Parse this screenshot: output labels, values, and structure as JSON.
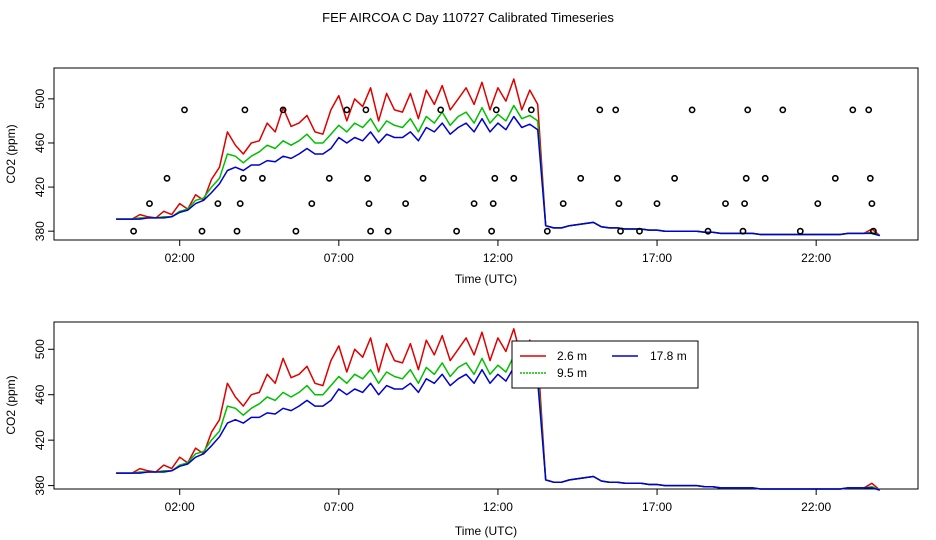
{
  "title": "FEF AIRCOA C  Day 110727  Calibrated Timeseries",
  "colors": {
    "h2_6": "#e00000",
    "h9_5": "#00c000",
    "h17_8": "#0000d0",
    "axis": "#000000"
  },
  "chart_data": [
    {
      "type": "line",
      "panel": "top",
      "title": "FEF AIRCOA C  Day 110727  Calibrated Timeseries",
      "xlabel": "Time (UTC)",
      "ylabel": "CO2 (ppm)",
      "xlim": [
        -1.95,
        25.2
      ],
      "ylim": [
        372,
        528
      ],
      "xticks": [
        2,
        7,
        12,
        17,
        22
      ],
      "xtick_labels": [
        "02:00",
        "07:00",
        "12:00",
        "17:00",
        "22:00"
      ],
      "yticks": [
        380,
        420,
        460,
        500
      ],
      "ytick_labels": [
        "380",
        "420",
        "460",
        "500"
      ],
      "x": [
        0,
        0.25,
        0.5,
        0.75,
        1,
        1.25,
        1.5,
        1.75,
        2,
        2.25,
        2.5,
        2.75,
        3,
        3.25,
        3.5,
        3.75,
        4,
        4.25,
        4.5,
        4.75,
        5,
        5.25,
        5.5,
        5.75,
        6,
        6.25,
        6.5,
        6.75,
        7,
        7.25,
        7.5,
        7.75,
        8,
        8.25,
        8.5,
        8.75,
        9,
        9.25,
        9.5,
        9.75,
        10,
        10.25,
        10.5,
        10.75,
        11,
        11.25,
        11.5,
        11.75,
        12,
        12.25,
        12.5,
        12.75,
        13,
        13.25,
        13.5,
        13.75,
        14,
        14.25,
        14.5,
        14.75,
        15,
        15.25,
        15.5,
        15.75,
        16,
        16.25,
        16.5,
        16.75,
        17,
        17.25,
        17.5,
        17.75,
        18,
        18.25,
        18.5,
        18.75,
        19,
        19.25,
        19.5,
        19.75,
        20,
        20.25,
        20.5,
        20.75,
        21,
        21.25,
        21.5,
        21.75,
        22,
        22.25,
        22.5,
        22.75,
        23,
        23.25,
        23.5,
        23.75,
        24
      ],
      "series": [
        {
          "name": "2.6 m",
          "values": [
            391,
            391,
            391,
            395,
            393,
            392,
            398,
            395,
            405,
            400,
            413,
            408,
            427,
            438,
            470,
            458,
            450,
            460,
            462,
            478,
            470,
            492,
            475,
            478,
            485,
            470,
            468,
            490,
            503,
            480,
            500,
            493,
            510,
            480,
            505,
            490,
            488,
            505,
            482,
            508,
            495,
            512,
            490,
            500,
            510,
            495,
            515,
            490,
            510,
            498,
            518,
            490,
            508,
            495,
            385,
            383,
            383,
            385,
            386,
            387,
            388,
            384,
            383,
            383,
            382,
            382,
            382,
            381,
            381,
            380,
            380,
            380,
            380,
            380,
            379,
            379,
            378,
            378,
            378,
            378,
            378,
            377,
            377,
            377,
            377,
            377,
            377,
            377,
            377,
            377,
            377,
            377,
            378,
            378,
            378,
            382,
            376
          ]
        },
        {
          "name": "9.5 m",
          "values": [
            391,
            391,
            391,
            392,
            392,
            392,
            393,
            393,
            398,
            400,
            408,
            410,
            420,
            428,
            450,
            448,
            442,
            448,
            452,
            458,
            455,
            462,
            458,
            462,
            468,
            460,
            460,
            468,
            476,
            470,
            478,
            474,
            482,
            470,
            480,
            476,
            474,
            482,
            470,
            484,
            478,
            488,
            476,
            484,
            488,
            478,
            492,
            478,
            486,
            480,
            494,
            482,
            485,
            480,
            385,
            383,
            383,
            385,
            386,
            387,
            388,
            384,
            383,
            383,
            382,
            382,
            382,
            381,
            381,
            380,
            380,
            380,
            380,
            380,
            379,
            379,
            378,
            378,
            378,
            378,
            378,
            377,
            377,
            377,
            377,
            377,
            377,
            377,
            377,
            377,
            377,
            377,
            378,
            378,
            378,
            379,
            376
          ]
        },
        {
          "name": "17.8 m",
          "values": [
            391,
            391,
            391,
            391,
            392,
            392,
            392,
            393,
            397,
            399,
            405,
            408,
            415,
            423,
            435,
            438,
            435,
            440,
            440,
            444,
            443,
            448,
            446,
            450,
            455,
            450,
            450,
            455,
            465,
            460,
            465,
            462,
            470,
            460,
            468,
            465,
            465,
            470,
            462,
            474,
            470,
            478,
            468,
            474,
            478,
            470,
            482,
            470,
            478,
            472,
            484,
            474,
            477,
            472,
            385,
            383,
            383,
            385,
            386,
            387,
            388,
            384,
            383,
            383,
            382,
            382,
            382,
            381,
            381,
            380,
            380,
            380,
            380,
            380,
            379,
            379,
            378,
            378,
            378,
            378,
            378,
            377,
            377,
            377,
            377,
            377,
            377,
            377,
            377,
            377,
            377,
            377,
            378,
            378,
            378,
            378,
            376
          ]
        }
      ],
      "calibration_points": [
        {
          "x": 0.55,
          "y": 380
        },
        {
          "x": 1.05,
          "y": 405
        },
        {
          "x": 1.6,
          "y": 428
        },
        {
          "x": 2.15,
          "y": 490
        },
        {
          "x": 2.7,
          "y": 380
        },
        {
          "x": 3.2,
          "y": 405
        },
        {
          "x": 3.8,
          "y": 380
        },
        {
          "x": 3.9,
          "y": 405
        },
        {
          "x": 4.0,
          "y": 428
        },
        {
          "x": 4.05,
          "y": 490
        },
        {
          "x": 4.6,
          "y": 428
        },
        {
          "x": 5.25,
          "y": 490
        },
        {
          "x": 5.65,
          "y": 380
        },
        {
          "x": 6.15,
          "y": 405
        },
        {
          "x": 6.7,
          "y": 428
        },
        {
          "x": 7.25,
          "y": 490
        },
        {
          "x": 7.85,
          "y": 490
        },
        {
          "x": 7.9,
          "y": 428
        },
        {
          "x": 7.95,
          "y": 405
        },
        {
          "x": 8.0,
          "y": 380
        },
        {
          "x": 8.55,
          "y": 380
        },
        {
          "x": 9.1,
          "y": 405
        },
        {
          "x": 9.65,
          "y": 428
        },
        {
          "x": 10.2,
          "y": 490
        },
        {
          "x": 10.7,
          "y": 380
        },
        {
          "x": 11.25,
          "y": 405
        },
        {
          "x": 11.8,
          "y": 380
        },
        {
          "x": 11.85,
          "y": 405
        },
        {
          "x": 11.9,
          "y": 428
        },
        {
          "x": 11.95,
          "y": 490
        },
        {
          "x": 12.5,
          "y": 428
        },
        {
          "x": 13.05,
          "y": 490
        },
        {
          "x": 13.55,
          "y": 380
        },
        {
          "x": 14.05,
          "y": 405
        },
        {
          "x": 14.6,
          "y": 428
        },
        {
          "x": 15.2,
          "y": 490
        },
        {
          "x": 15.7,
          "y": 490
        },
        {
          "x": 15.75,
          "y": 428
        },
        {
          "x": 15.8,
          "y": 405
        },
        {
          "x": 15.85,
          "y": 380
        },
        {
          "x": 16.45,
          "y": 380
        },
        {
          "x": 17.0,
          "y": 405
        },
        {
          "x": 17.55,
          "y": 428
        },
        {
          "x": 18.1,
          "y": 490
        },
        {
          "x": 18.6,
          "y": 380
        },
        {
          "x": 19.15,
          "y": 405
        },
        {
          "x": 19.7,
          "y": 380
        },
        {
          "x": 19.75,
          "y": 405
        },
        {
          "x": 19.8,
          "y": 428
        },
        {
          "x": 19.85,
          "y": 490
        },
        {
          "x": 20.4,
          "y": 428
        },
        {
          "x": 20.95,
          "y": 490
        },
        {
          "x": 21.5,
          "y": 380
        },
        {
          "x": 22.05,
          "y": 405
        },
        {
          "x": 22.6,
          "y": 428
        },
        {
          "x": 23.15,
          "y": 490
        },
        {
          "x": 23.65,
          "y": 490
        },
        {
          "x": 23.7,
          "y": 428
        },
        {
          "x": 23.75,
          "y": 405
        },
        {
          "x": 23.8,
          "y": 380
        }
      ]
    },
    {
      "type": "line",
      "panel": "bottom",
      "xlabel": "Time (UTC)",
      "ylabel": "CO2 (ppm)",
      "xlim": [
        -1.95,
        25.2
      ],
      "ylim": [
        377,
        524
      ],
      "xticks": [
        2,
        7,
        12,
        17,
        22
      ],
      "xtick_labels": [
        "02:00",
        "07:00",
        "12:00",
        "17:00",
        "22:00"
      ],
      "yticks": [
        380,
        420,
        460,
        500
      ],
      "ytick_labels": [
        "380",
        "420",
        "460",
        "500"
      ],
      "legend": [
        {
          "label": "2.6 m",
          "series": "2.6 m"
        },
        {
          "label": "17.8 m",
          "series": "17.8 m"
        },
        {
          "label": "9.5 m",
          "series": "9.5 m"
        }
      ],
      "legend_position": "top-right"
    }
  ]
}
